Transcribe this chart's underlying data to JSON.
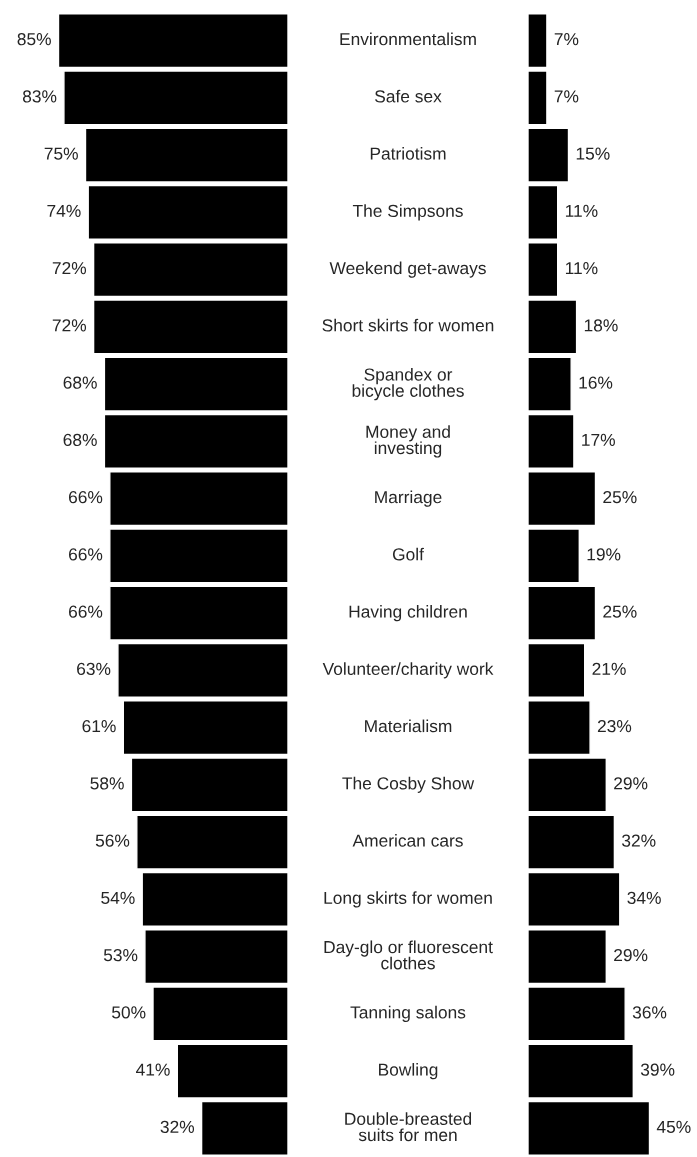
{
  "chart_data": [
    {
      "type": "bar",
      "orientation": "horizontal",
      "categories": [
        "Environmentalism",
        "Safe sex",
        "Patriotism",
        "The Simpsons",
        "Weekend get-aways",
        "Short skirts for women",
        "Spandex or\nbicycle clothes",
        "Money and\ninvesting",
        "Marriage",
        "Golf",
        "Having children",
        "Volunteer/charity work",
        "Materialism",
        "The Cosby Show",
        "American cars",
        "Long skirts for women",
        "Day-glo or fluorescent\nclothes",
        "Tanning salons",
        "Bowling",
        "Double-breasted\nsuits for men"
      ],
      "series": [
        {
          "color": "#000000",
          "values": [
            85,
            83,
            75,
            74,
            72,
            72,
            68,
            68,
            66,
            66,
            66,
            63,
            61,
            58,
            56,
            54,
            53,
            50,
            41,
            32
          ],
          "value_labels": [
            "85%",
            "83%",
            "75%",
            "74%",
            "72%",
            "72%",
            "68%",
            "68%",
            "66%",
            "66%",
            "66%",
            "63%",
            "61%",
            "58%",
            "56%",
            "54%",
            "53%",
            "50%",
            "41%",
            "32%"
          ]
        }
      ]
    },
    {
      "type": "bar",
      "orientation": "horizontal",
      "categories": [
        null,
        null,
        null,
        null,
        null,
        null,
        null,
        null,
        null,
        null,
        null,
        null,
        null,
        null,
        null,
        null,
        null,
        null,
        null,
        null
      ],
      "series": [
        {
          "color": "#000000",
          "values": [
            7,
            7,
            15,
            11,
            11,
            18,
            16,
            17,
            25,
            19,
            25,
            21,
            23,
            29,
            32,
            34,
            29,
            36,
            39,
            45
          ],
          "value_labels": [
            "7%",
            "7%",
            "15%",
            "11%",
            "11%",
            "18%",
            "16%",
            "17%",
            "25%",
            "19%",
            "25%",
            "21%",
            "23%",
            "29%",
            "32%",
            "34%",
            "29%",
            "36%",
            "39%",
            "45%"
          ]
        }
      ]
    }
  ]
}
